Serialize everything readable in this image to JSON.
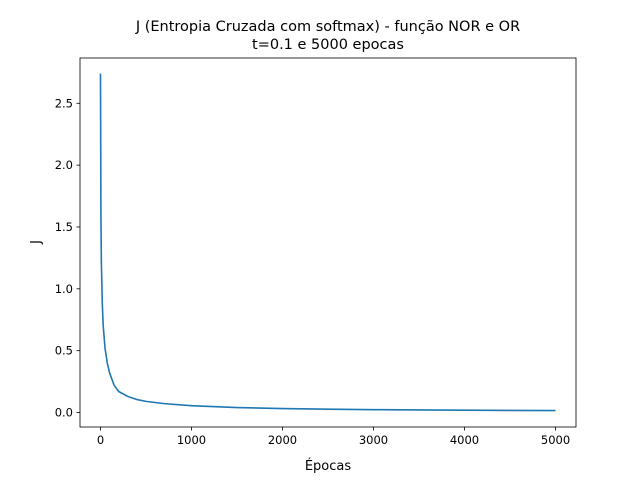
{
  "chart_data": {
    "type": "line",
    "title": "J (Entropia Cruzada com softmax) - função NOR e OR",
    "subtitle": "t=0.1 e 5000 epocas",
    "xlabel": "Épocas",
    "ylabel": "J",
    "xlim": [
      -225,
      5225
    ],
    "ylim": [
      -0.117,
      2.866
    ],
    "xticks": [
      0,
      1000,
      2000,
      3000,
      4000,
      5000
    ],
    "xtick_labels": [
      "0",
      "1000",
      "2000",
      "3000",
      "4000",
      "5000"
    ],
    "yticks": [
      0.0,
      0.5,
      1.0,
      1.5,
      2.0,
      2.5
    ],
    "ytick_labels": [
      "0.0",
      "0.5",
      "1.0",
      "1.5",
      "2.0",
      "2.5"
    ],
    "grid": false,
    "legend": "none",
    "series": [
      {
        "color": "#1f77b4",
        "x": [
          0,
          5,
          10,
          20,
          30,
          50,
          75,
          100,
          150,
          200,
          300,
          400,
          500,
          700,
          1000,
          1500,
          2000,
          2500,
          3000,
          3500,
          4000,
          4500,
          5000
        ],
        "y": [
          2.74,
          1.6,
          1.2,
          0.88,
          0.7,
          0.52,
          0.4,
          0.32,
          0.22,
          0.17,
          0.13,
          0.105,
          0.09,
          0.072,
          0.055,
          0.04,
          0.032,
          0.027,
          0.023,
          0.021,
          0.019,
          0.017,
          0.016
        ]
      }
    ]
  }
}
